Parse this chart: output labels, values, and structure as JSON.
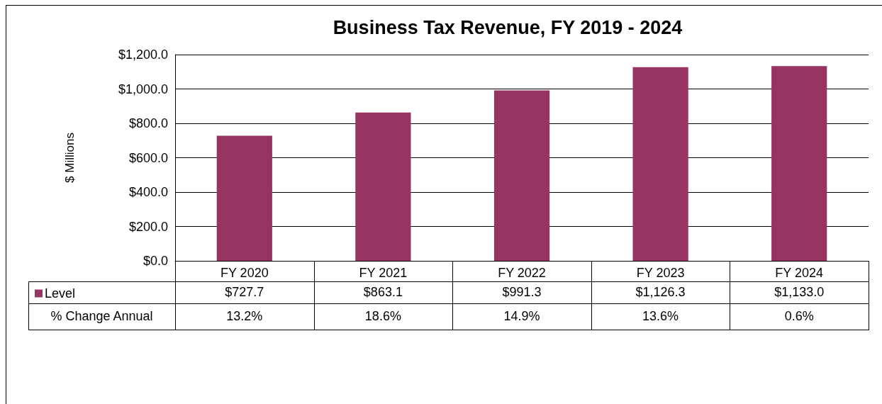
{
  "chart_data": {
    "type": "bar",
    "title": "Business Tax Revenue, FY 2019 - 2024",
    "ylabel": "$ Millions",
    "categories": [
      "FY 2020",
      "FY 2021",
      "FY 2022",
      "FY 2023",
      "FY 2024"
    ],
    "series": [
      {
        "name": "Level",
        "color": "#983462",
        "values": [
          727.7,
          863.1,
          991.3,
          1126.3,
          1133.0
        ],
        "value_labels": [
          "$727.7",
          "$863.1",
          "$991.3",
          "$1,126.3",
          "$1,133.0"
        ]
      }
    ],
    "ylim": [
      0,
      1200
    ],
    "yticks": [
      {
        "value": 0,
        "label": "$0.0"
      },
      {
        "value": 200,
        "label": "$200.0"
      },
      {
        "value": 400,
        "label": "$400.0"
      },
      {
        "value": 600,
        "label": "$600.0"
      },
      {
        "value": 800,
        "label": "$800.0"
      },
      {
        "value": 1000,
        "label": "$1,000.0"
      },
      {
        "value": 1200,
        "label": "$1,200.0"
      }
    ],
    "grid": "y",
    "legend": "bottom left",
    "annotations": [
      "% Change Annual",
      "13.2%",
      "18.6%",
      "14.9%",
      "13.6%",
      "0.6%"
    ]
  }
}
